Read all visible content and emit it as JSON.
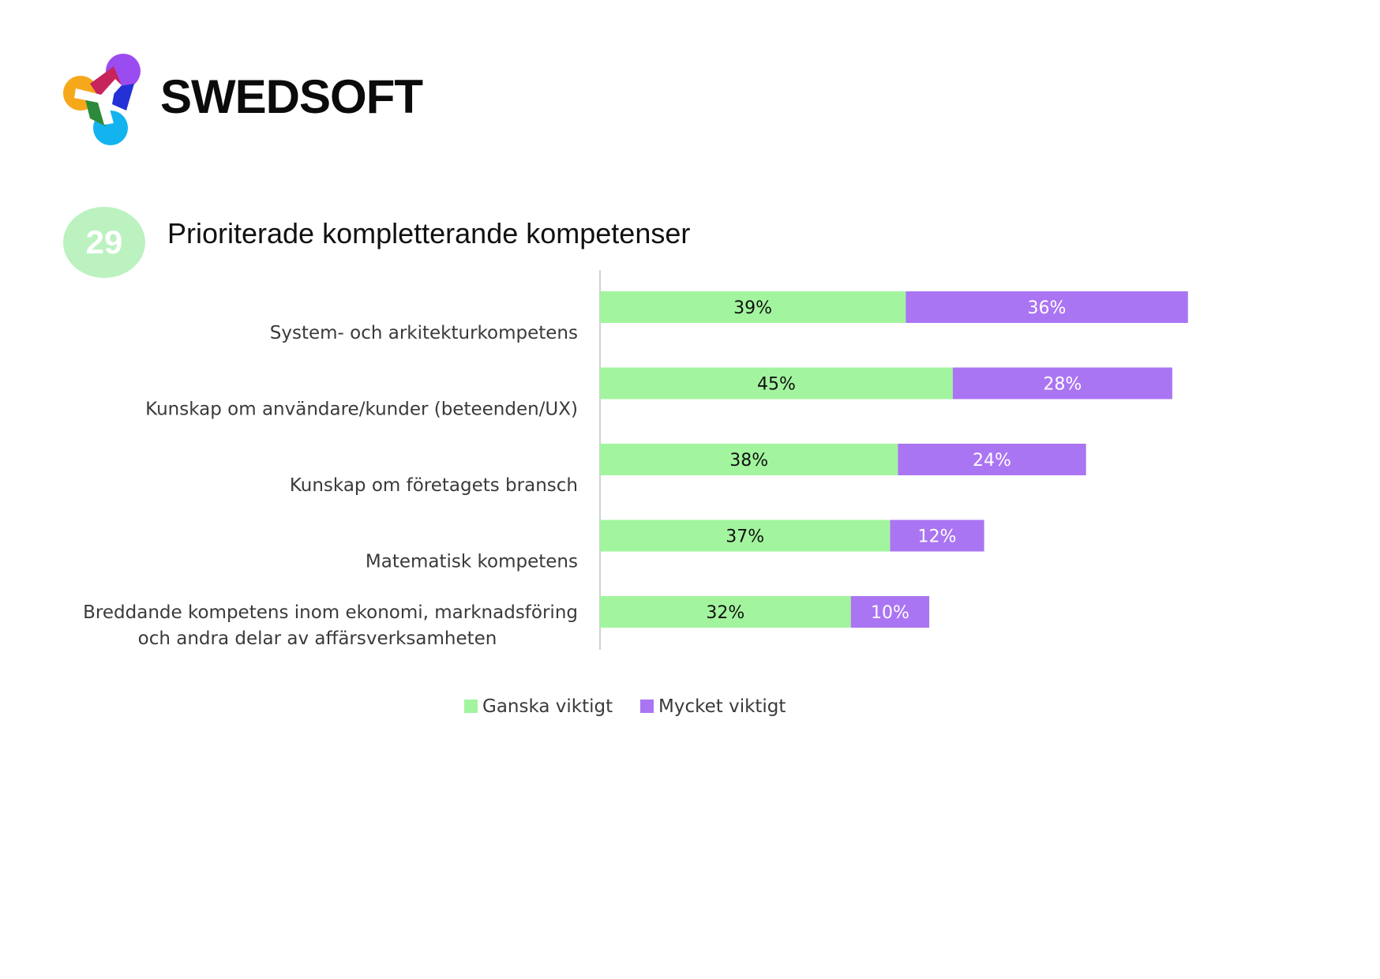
{
  "brand": {
    "name": "SWEDSOFT",
    "logo_icon": "swedsoft-logo-icon"
  },
  "figure": {
    "number": "29",
    "badge_color": "#bbf2c0"
  },
  "colors": {
    "ganska": "#a2f59e",
    "mycket": "#aa75f2",
    "label_dark": "#111111",
    "label_light": "#ffffff",
    "axis": "#c9d3d3"
  },
  "chart_data": {
    "type": "bar",
    "orientation": "horizontal",
    "stacked": true,
    "title": "Prioriterade kompletterande kompetenser",
    "xlabel": "",
    "ylabel": "",
    "xlim": [
      0,
      100
    ],
    "grid": false,
    "legend_position": "bottom",
    "value_format": "percent",
    "categories": [
      [
        "System- och arkitekturkompetens"
      ],
      [
        "Kunskap om användare/kunder (beteenden/UX)"
      ],
      [
        "Kunskap om företagets bransch"
      ],
      [
        "Matematisk kompetens"
      ],
      [
        "Breddande kompetens inom ekonomi, marknadsföring",
        "och andra delar av affärsverksamheten"
      ]
    ],
    "series": [
      {
        "name": "Ganska viktigt",
        "values": [
          39,
          45,
          38,
          37,
          32
        ]
      },
      {
        "name": "Mycket viktigt",
        "values": [
          36,
          28,
          24,
          12,
          10
        ]
      }
    ]
  }
}
